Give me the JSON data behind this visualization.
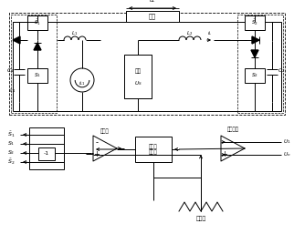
{
  "bg_color": "#ffffff",
  "line_color": "#000000",
  "fig_width": 3.22,
  "fig_height": 2.68,
  "dpi": 100,
  "labels": {
    "load": "负载",
    "power": "电源",
    "comparator": "比较器",
    "comp_amp": "比较放大",
    "sine_gen": "正弦波\n发生器",
    "triangle": "三角波",
    "inv": "-1"
  }
}
